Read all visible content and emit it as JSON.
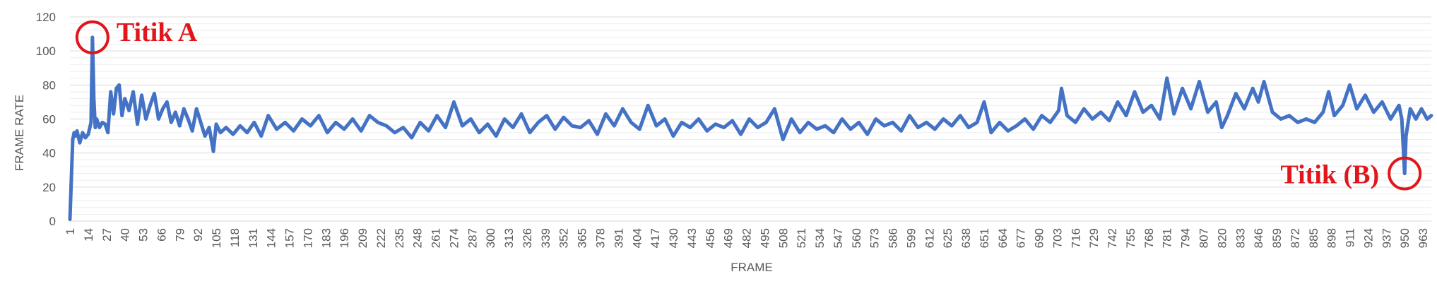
{
  "chart_data": {
    "type": "line",
    "title": "",
    "xlabel": "FRAME",
    "ylabel": "FRAME RATE",
    "ylim": [
      0,
      120
    ],
    "yticks": [
      0,
      20,
      40,
      60,
      80,
      100,
      120
    ],
    "xlim": [
      1,
      969
    ],
    "xtick_step": 13,
    "grid": true,
    "legend": "none",
    "series": [
      {
        "color": "#4472C4",
        "x": [
          1,
          2,
          3,
          4,
          5,
          6,
          8,
          10,
          12,
          14,
          16,
          17,
          18,
          19,
          20,
          22,
          24,
          26,
          28,
          30,
          32,
          34,
          36,
          38,
          40,
          43,
          46,
          49,
          52,
          55,
          58,
          61,
          64,
          67,
          70,
          73,
          76,
          79,
          82,
          85,
          88,
          91,
          94,
          97,
          100,
          103,
          105,
          108,
          112,
          117,
          122,
          127,
          132,
          137,
          142,
          148,
          154,
          160,
          166,
          172,
          178,
          184,
          190,
          196,
          202,
          208,
          214,
          220,
          226,
          232,
          238,
          244,
          250,
          256,
          262,
          268,
          274,
          280,
          286,
          292,
          298,
          304,
          310,
          316,
          322,
          328,
          334,
          340,
          346,
          352,
          358,
          364,
          370,
          376,
          382,
          388,
          394,
          400,
          406,
          412,
          418,
          424,
          430,
          436,
          442,
          448,
          454,
          460,
          466,
          472,
          478,
          484,
          490,
          496,
          502,
          508,
          514,
          520,
          526,
          532,
          538,
          544,
          550,
          556,
          562,
          568,
          574,
          580,
          586,
          592,
          598,
          604,
          610,
          616,
          622,
          628,
          634,
          640,
          646,
          651,
          656,
          662,
          668,
          674,
          680,
          686,
          692,
          698,
          704,
          706,
          710,
          716,
          722,
          728,
          734,
          740,
          746,
          752,
          758,
          764,
          770,
          776,
          781,
          786,
          792,
          798,
          804,
          810,
          816,
          820,
          824,
          830,
          836,
          842,
          846,
          850,
          856,
          862,
          868,
          874,
          880,
          886,
          892,
          896,
          900,
          906,
          911,
          916,
          922,
          928,
          934,
          940,
          946,
          948,
          950,
          951,
          954,
          958,
          962,
          966,
          969
        ],
        "y": [
          1,
          25,
          48,
          52,
          50,
          53,
          46,
          52,
          49,
          51,
          58,
          108,
          72,
          55,
          60,
          55,
          58,
          57,
          52,
          76,
          63,
          78,
          80,
          62,
          72,
          65,
          76,
          57,
          74,
          60,
          68,
          75,
          60,
          66,
          70,
          58,
          64,
          56,
          66,
          60,
          53,
          66,
          58,
          50,
          55,
          41,
          57,
          52,
          55,
          51,
          56,
          52,
          58,
          50,
          62,
          54,
          58,
          53,
          60,
          56,
          62,
          52,
          58,
          54,
          60,
          53,
          62,
          58,
          56,
          52,
          55,
          49,
          58,
          53,
          62,
          55,
          70,
          56,
          60,
          52,
          57,
          50,
          60,
          55,
          63,
          52,
          58,
          62,
          54,
          61,
          56,
          55,
          59,
          51,
          63,
          56,
          66,
          58,
          54,
          68,
          56,
          60,
          50,
          58,
          55,
          60,
          53,
          57,
          55,
          59,
          51,
          60,
          55,
          58,
          66,
          48,
          60,
          52,
          58,
          54,
          56,
          52,
          60,
          54,
          58,
          51,
          60,
          56,
          58,
          53,
          62,
          55,
          58,
          54,
          60,
          56,
          62,
          55,
          58,
          70,
          52,
          58,
          53,
          56,
          60,
          54,
          62,
          58,
          65,
          78,
          62,
          58,
          66,
          60,
          64,
          59,
          70,
          62,
          76,
          64,
          68,
          60,
          84,
          63,
          78,
          66,
          82,
          64,
          70,
          55,
          62,
          75,
          66,
          78,
          70,
          82,
          64,
          60,
          62,
          58,
          60,
          58,
          64,
          76,
          62,
          68,
          80,
          66,
          74,
          64,
          70,
          60,
          68,
          60,
          28,
          50,
          66,
          60,
          66,
          60,
          62
        ]
      }
    ],
    "annotations": [
      {
        "label": "Titik A",
        "x": 17,
        "y": 108,
        "color": "#E0161B"
      },
      {
        "label": "Titik (B)",
        "x": 950,
        "y": 28,
        "color": "#E0161B"
      }
    ]
  }
}
